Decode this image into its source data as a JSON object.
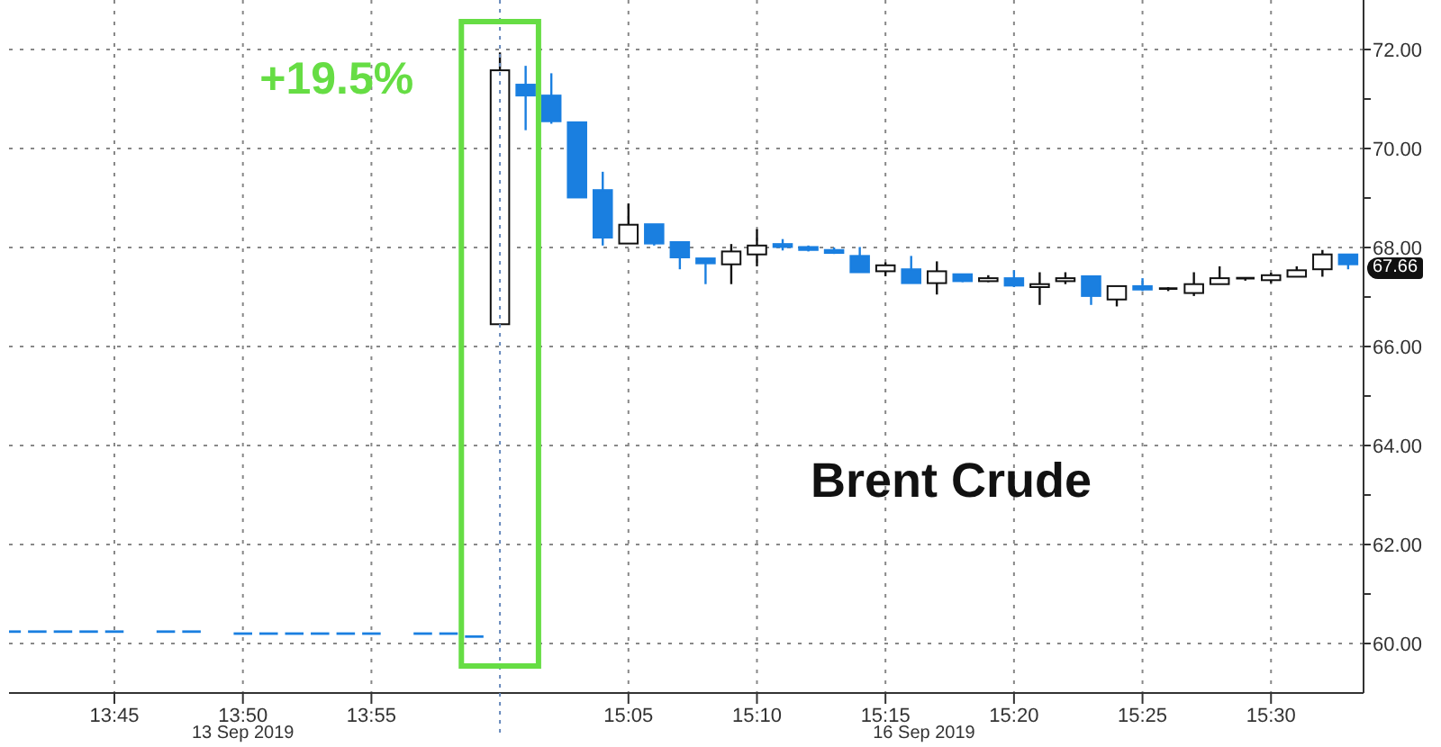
{
  "chart_data": {
    "type": "candlestick",
    "title": "Brent Crude",
    "categories": [
      null,
      null,
      null,
      null,
      "13:45",
      null,
      null,
      null,
      null,
      "13:50",
      null,
      null,
      null,
      null,
      "13:55",
      null,
      null,
      null,
      null,
      null,
      null,
      null,
      null,
      null,
      "15:05",
      null,
      null,
      null,
      null,
      "15:10",
      null,
      null,
      null,
      null,
      "15:15",
      null,
      null,
      null,
      null,
      "15:20",
      null,
      null,
      null,
      null,
      "15:25",
      null,
      null,
      null,
      null,
      "15:30",
      null,
      null,
      null
    ],
    "ohlc": [
      [
        60.24,
        60.24,
        60.24,
        60.24
      ],
      [
        60.24,
        60.24,
        60.24,
        60.24
      ],
      [
        60.24,
        60.24,
        60.24,
        60.24
      ],
      [
        60.24,
        60.24,
        60.24,
        60.24
      ],
      [
        60.24,
        60.24,
        60.24,
        60.24
      ],
      null,
      [
        60.24,
        60.24,
        60.24,
        60.24
      ],
      [
        60.24,
        60.24,
        60.24,
        60.24
      ],
      null,
      [
        60.2,
        60.2,
        60.2,
        60.2
      ],
      [
        60.2,
        60.2,
        60.2,
        60.2
      ],
      [
        60.2,
        60.2,
        60.2,
        60.2
      ],
      [
        60.2,
        60.2,
        60.2,
        60.2
      ],
      [
        60.2,
        60.2,
        60.2,
        60.2
      ],
      [
        60.2,
        60.2,
        60.2,
        60.2
      ],
      null,
      [
        60.2,
        60.2,
        60.2,
        60.2
      ],
      [
        60.2,
        60.2,
        60.2,
        60.2
      ],
      [
        60.14,
        60.14,
        60.14,
        60.14
      ],
      [
        66.45,
        71.94,
        66.45,
        71.58
      ],
      [
        71.29,
        71.67,
        70.37,
        71.07
      ],
      [
        71.07,
        71.52,
        70.5,
        70.55
      ],
      [
        70.53,
        70.53,
        69.0,
        69.01
      ],
      [
        69.16,
        69.53,
        68.04,
        68.2
      ],
      [
        68.08,
        68.89,
        68.08,
        68.46
      ],
      [
        68.47,
        68.47,
        68.04,
        68.08
      ],
      [
        68.11,
        68.11,
        67.56,
        67.8
      ],
      [
        67.78,
        67.78,
        67.26,
        67.68
      ],
      [
        67.66,
        68.07,
        67.26,
        67.92
      ],
      [
        67.86,
        68.37,
        67.62,
        68.04
      ],
      [
        68.07,
        68.17,
        67.94,
        68.01
      ],
      [
        68.01,
        68.04,
        67.92,
        67.95
      ],
      [
        67.95,
        68.0,
        67.87,
        67.89
      ],
      [
        67.83,
        68.01,
        67.5,
        67.5
      ],
      [
        67.52,
        67.7,
        67.42,
        67.64
      ],
      [
        67.56,
        67.83,
        67.28,
        67.28
      ],
      [
        67.28,
        67.72,
        67.05,
        67.52
      ],
      [
        67.46,
        67.46,
        67.3,
        67.32
      ],
      [
        67.32,
        67.44,
        67.3,
        67.38
      ],
      [
        67.38,
        67.54,
        67.2,
        67.23
      ],
      [
        67.2,
        67.5,
        66.84,
        67.26
      ],
      [
        67.32,
        67.5,
        67.26,
        67.38
      ],
      [
        67.42,
        67.42,
        66.84,
        67.02
      ],
      [
        66.95,
        67.22,
        66.81,
        67.22
      ],
      [
        67.22,
        67.38,
        67.12,
        67.15
      ],
      [
        67.14,
        67.2,
        67.12,
        67.17
      ],
      [
        67.08,
        67.5,
        67.02,
        67.26
      ],
      [
        67.26,
        67.62,
        67.26,
        67.38
      ],
      [
        67.35,
        67.4,
        67.33,
        67.38
      ],
      [
        67.34,
        67.49,
        67.28,
        67.44
      ],
      [
        67.41,
        67.62,
        67.41,
        67.54
      ],
      [
        67.56,
        67.95,
        67.41,
        67.86
      ],
      [
        67.86,
        67.86,
        67.56,
        67.66
      ]
    ],
    "colors": [
      "#1a7fe0",
      "#1a7fe0",
      "#1a7fe0",
      "#1a7fe0",
      "#1a7fe0",
      null,
      "#1a7fe0",
      "#1a7fe0",
      null,
      "#1a7fe0",
      "#1a7fe0",
      "#1a7fe0",
      "#1a7fe0",
      "#1a7fe0",
      "#1a7fe0",
      null,
      "#1a7fe0",
      "#1a7fe0",
      "#1a7fe0",
      "#ffffff",
      "#1a7fe0",
      "#1a7fe0",
      "#1a7fe0",
      "#1a7fe0",
      "#ffffff",
      "#1a7fe0",
      "#1a7fe0",
      "#1a7fe0",
      "#ffffff",
      "#ffffff",
      "#1a7fe0",
      "#1a7fe0",
      "#1a7fe0",
      "#1a7fe0",
      "#ffffff",
      "#1a7fe0",
      "#ffffff",
      "#1a7fe0",
      "#ffffff",
      "#1a7fe0",
      "#ffffff",
      "#ffffff",
      "#1a7fe0",
      "#ffffff",
      "#1a7fe0",
      "#111111",
      "#ffffff",
      "#ffffff",
      "#111111",
      "#ffffff",
      "#ffffff",
      "#ffffff",
      "#1a7fe0"
    ],
    "ylim": [
      59,
      73
    ],
    "yticks": [
      {
        "value": 60,
        "label": "60.00"
      },
      {
        "value": 61,
        "label": null
      },
      {
        "value": 62,
        "label": "62.00"
      },
      {
        "value": 63,
        "label": null
      },
      {
        "value": 64,
        "label": "64.00"
      },
      {
        "value": 65,
        "label": null
      },
      {
        "value": 66,
        "label": "66.00"
      },
      {
        "value": 67,
        "label": null
      },
      {
        "value": 68,
        "label": "68.00"
      },
      {
        "value": 69,
        "label": null
      },
      {
        "value": 70,
        "label": "70.00"
      },
      {
        "value": 71,
        "label": null
      },
      {
        "value": 72,
        "label": "72.00"
      }
    ],
    "grid": true,
    "annotations": [
      {
        "text": "67.66",
        "y": 67.66
      },
      "+19.5%",
      "13 Sep 2019",
      "16 Sep 2019"
    ]
  }
}
